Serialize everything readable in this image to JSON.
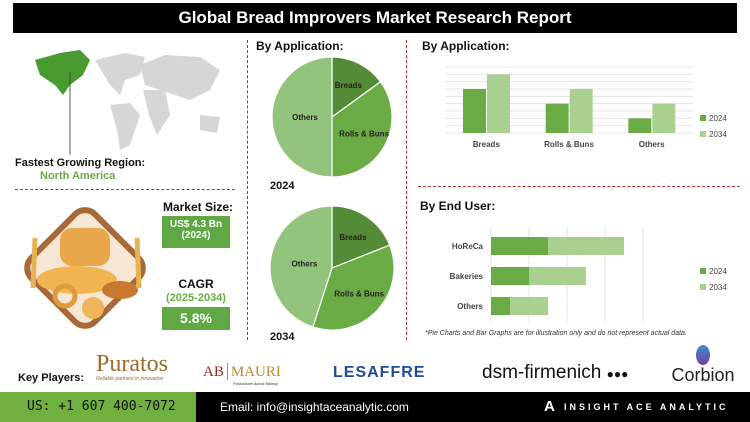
{
  "title": "Global Bread Improvers Market Research Report",
  "region": {
    "label": "Fastest Growing Region:",
    "value": "North America"
  },
  "market_size": {
    "label": "Market Size:",
    "value": "US$ 4.3 Bn",
    "year": "(2024)"
  },
  "cagr": {
    "label": "CAGR",
    "period": "(2025-2034)",
    "value": "5.8%"
  },
  "colors": {
    "dark": "#548b36",
    "mid": "#6aab45",
    "light": "#93c47d",
    "lighter": "#a9d08e",
    "accent_green": "#6aab45",
    "divider": "#b03030"
  },
  "chart_data": [
    {
      "type": "pie",
      "title": "By Application:",
      "caption": "2024",
      "categories": [
        "Breads",
        "Rolls & Buns",
        "Others"
      ],
      "values": [
        15,
        35,
        50
      ]
    },
    {
      "type": "pie",
      "caption": "2034",
      "categories": [
        "Breads",
        "Rolls & Buns",
        "Others"
      ],
      "values": [
        19,
        36,
        45
      ]
    },
    {
      "type": "bar",
      "title": "By Application:",
      "categories": [
        "Breads",
        "Rolls & Buns",
        "Others"
      ],
      "series": [
        {
          "name": "2024",
          "values": [
            6,
            4,
            2
          ]
        },
        {
          "name": "2034",
          "values": [
            8,
            6,
            4
          ]
        }
      ],
      "ylim": [
        0,
        9
      ],
      "grid": true,
      "legend": "right"
    },
    {
      "type": "bar",
      "orientation": "horizontal",
      "stacked": true,
      "title": "By End User:",
      "categories": [
        "HoReCa",
        "Bakeries",
        "Others"
      ],
      "series": [
        {
          "name": "2024",
          "values": [
            1.5,
            1,
            0.5
          ]
        },
        {
          "name": "2034",
          "values": [
            2,
            1.5,
            1
          ]
        }
      ],
      "xlim": [
        0,
        5
      ],
      "grid": true,
      "legend": "right"
    }
  ],
  "footnote": "*Pie Charts and Bar Graphs are for illustration only and do not represent actual data.",
  "key_players": {
    "label": "Key Players:",
    "logos": [
      {
        "name": "Puratos",
        "tagline": "Reliable partners in innovation"
      },
      {
        "name": "AB",
        "name2": "MAURI",
        "tagline": "Passionate About Baking"
      },
      {
        "name": "LESAFFRE"
      },
      {
        "name": "dsm-firmenich"
      },
      {
        "name": "Corbion"
      }
    ]
  },
  "footer": {
    "phone": "US: +1 607 400-7072",
    "email": "Email: info@insightaceanalytic.com",
    "brand": "INSIGHT ACE ANALYTIC"
  }
}
